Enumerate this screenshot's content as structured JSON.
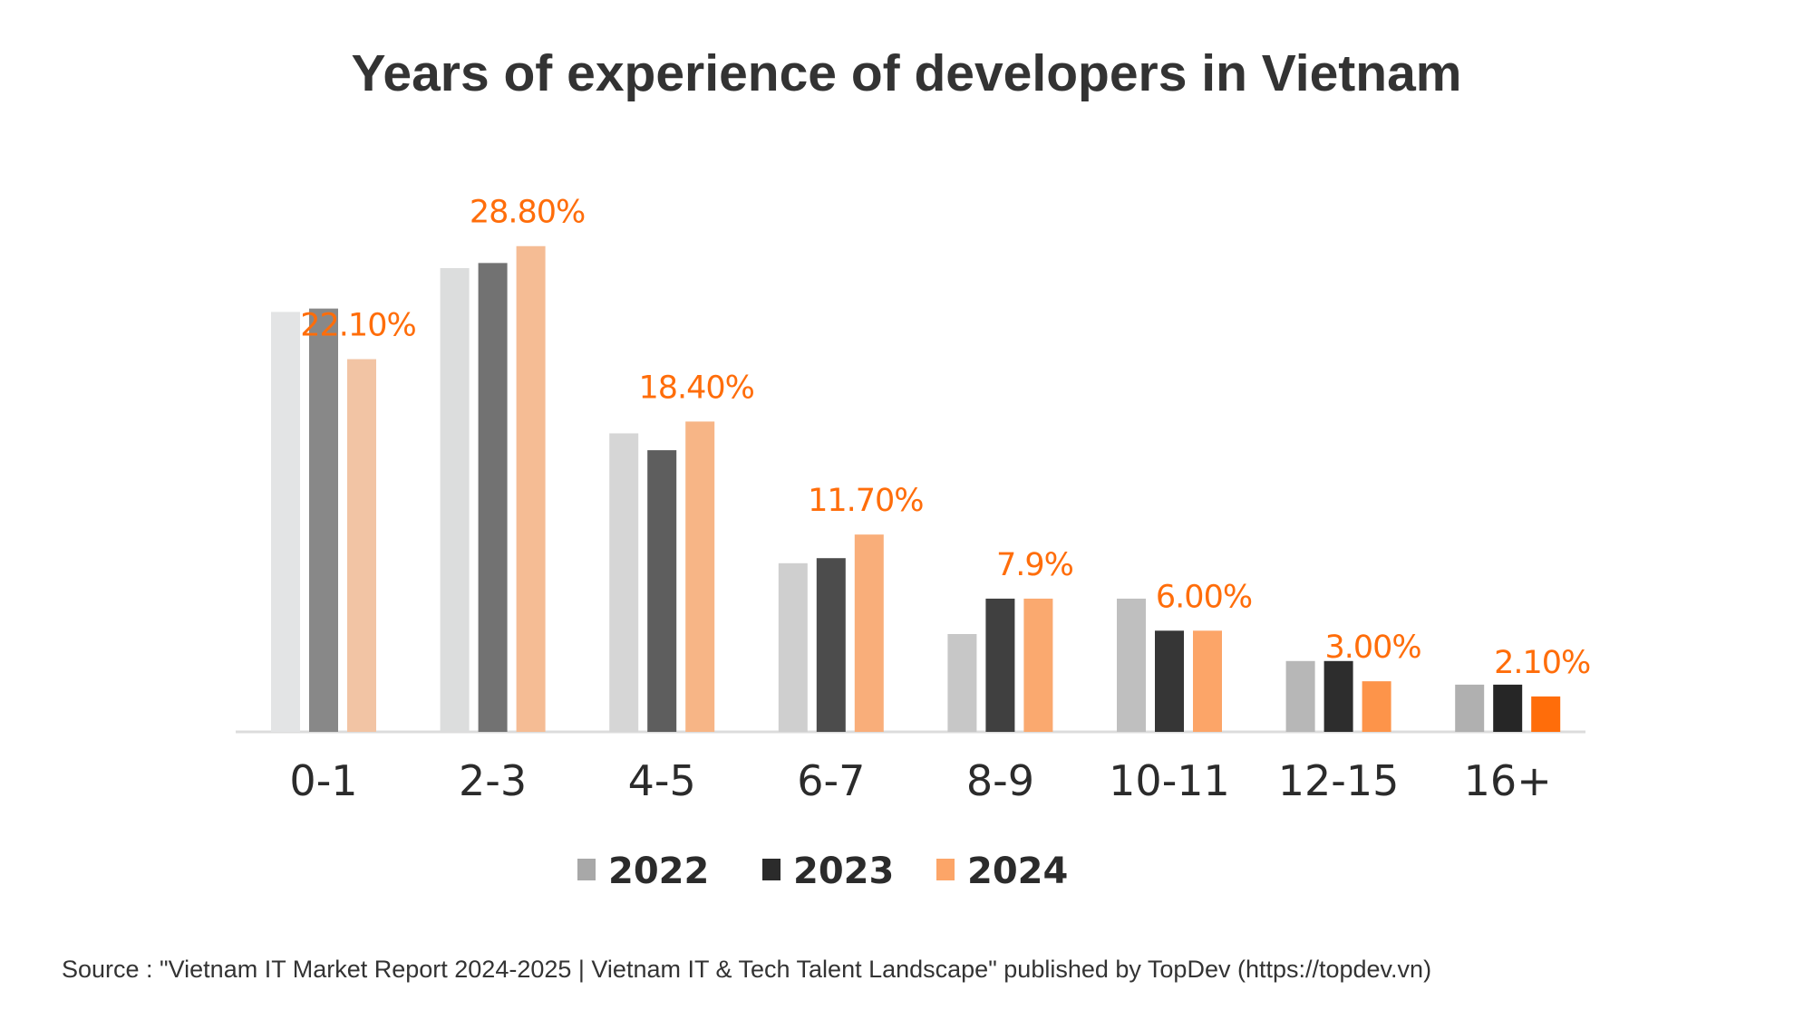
{
  "chart_data": {
    "type": "bar",
    "title": "Years of experience of developers in Vietnam",
    "xlabel": "",
    "ylabel": "",
    "ylim": [
      0,
      30
    ],
    "grid": false,
    "legend_position": "bottom",
    "categories": [
      "0-1",
      "2-3",
      "4-5",
      "6-7",
      "8-9",
      "10-11",
      "12-15",
      "16+"
    ],
    "series": [
      {
        "name": "2022",
        "values": [
          24.9,
          27.5,
          17.7,
          10.0,
          5.8,
          7.9,
          4.2,
          2.8
        ],
        "colors": [
          "#e3e4e5",
          "#dcdddd",
          "#d6d6d6",
          "#cfcfcf",
          "#c7c7c7",
          "#bfbfbf",
          "#b7b7b7",
          "#b0b0b0"
        ],
        "legend_color": "#a8a8a8"
      },
      {
        "name": "2023",
        "values": [
          25.1,
          27.8,
          16.7,
          10.3,
          7.9,
          6.0,
          4.2,
          2.8
        ],
        "colors": [
          "#888888",
          "#727272",
          "#5e5e5e",
          "#4c4c4c",
          "#404040",
          "#363636",
          "#2d2d2d",
          "#262626"
        ],
        "legend_color": "#2b2b2b"
      },
      {
        "name": "2024",
        "values": [
          22.1,
          28.8,
          18.4,
          11.7,
          7.9,
          6.0,
          3.0,
          2.1
        ],
        "colors": [
          "#f2c4a4",
          "#f5bc94",
          "#f7b586",
          "#f9ae7a",
          "#faa96f",
          "#fca568",
          "#fd944a",
          "#ff6d0a"
        ],
        "legend_color": "#fca568"
      }
    ],
    "data_labels": [
      "22.10%",
      "28.80%",
      "18.40%",
      "11.70%",
      "7.9%",
      "6.00%",
      "3.00%",
      "2.10%"
    ],
    "label_color": "#ff6d0a"
  },
  "source": "Source : \"Vietnam IT Market Report 2024-2025 | Vietnam IT & Tech Talent Landscape\" published by TopDev (https://topdev.vn)"
}
